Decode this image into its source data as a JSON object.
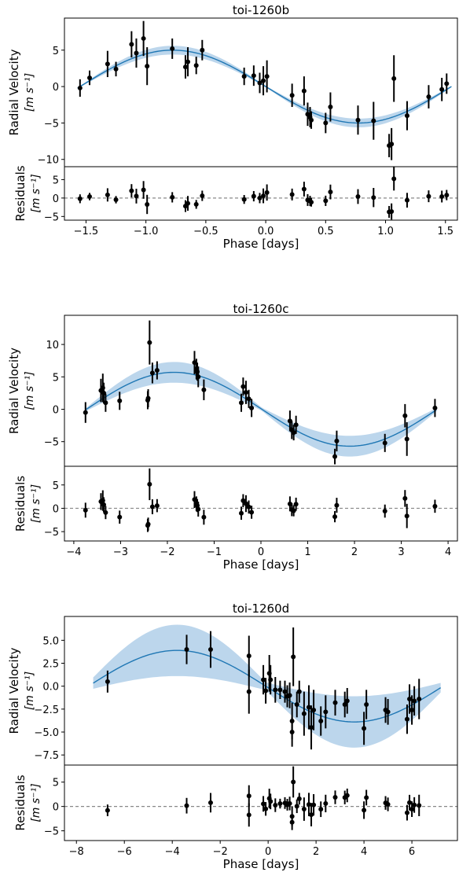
{
  "colors": {
    "model": "#1f77b4",
    "band": "#a6c8e6",
    "point": "#000000",
    "zero_line": "#888888"
  },
  "chart_data": [
    {
      "type": "scatter",
      "title": "toi-1260b",
      "ylabel": [
        "Radial Velocity",
        "[m s⁻¹]"
      ],
      "res_ylabel": [
        "Residuals",
        "[m s⁻¹]"
      ],
      "xlabel": "Phase [days]",
      "xlim": [
        -1.68,
        1.6
      ],
      "ylim": [
        -11.0,
        9.4
      ],
      "res_ylim": [
        -6.0,
        8.5
      ],
      "xticks": [
        -1.5,
        -1.0,
        -0.5,
        0.0,
        0.5,
        1.0,
        1.5
      ],
      "xtick_labels": [
        "−1.5",
        "−1.0",
        "−0.5",
        "0.0",
        "0.5",
        "1.0",
        "1.5"
      ],
      "yticks": [
        -10,
        -5,
        0,
        5
      ],
      "ytick_labels": [
        "−10",
        "−5",
        "0",
        "5"
      ],
      "res_yticks": [
        -5,
        0,
        5
      ],
      "res_ytick_labels": [
        "−5",
        "0",
        "5"
      ],
      "model": {
        "amplitude": 5.0,
        "band": 0.6,
        "period": 3.1,
        "phase_peak": -0.775,
        "xrange": [
          -1.57,
          1.55
        ]
      },
      "points": [
        [
          -1.55,
          -0.2,
          1.2
        ],
        [
          -1.47,
          1.2,
          1.0
        ],
        [
          -1.32,
          3.1,
          1.8
        ],
        [
          -1.25,
          2.4,
          1.0
        ],
        [
          -1.12,
          5.8,
          1.8
        ],
        [
          -1.08,
          4.6,
          2.0
        ],
        [
          -1.02,
          6.6,
          2.4
        ],
        [
          -0.99,
          2.8,
          2.6
        ],
        [
          -0.78,
          5.2,
          1.4
        ],
        [
          -0.67,
          2.7,
          1.6
        ],
        [
          -0.65,
          3.4,
          2.0
        ],
        [
          -0.58,
          2.9,
          1.2
        ],
        [
          -0.53,
          5.0,
          1.4
        ],
        [
          -0.18,
          1.4,
          1.2
        ],
        [
          -0.1,
          1.5,
          1.4
        ],
        [
          -0.05,
          0.5,
          1.4
        ],
        [
          -0.02,
          0.8,
          2.0
        ],
        [
          0.01,
          1.4,
          2.2
        ],
        [
          0.22,
          -1.2,
          1.6
        ],
        [
          0.32,
          -0.6,
          2.0
        ],
        [
          0.35,
          -3.8,
          1.6
        ],
        [
          0.37,
          -4.2,
          1.4
        ],
        [
          0.38,
          -4.6,
          1.2
        ],
        [
          0.5,
          -5.0,
          1.4
        ],
        [
          0.54,
          -2.8,
          2.0
        ],
        [
          0.77,
          -4.6,
          2.0
        ],
        [
          0.9,
          -4.7,
          2.6
        ],
        [
          1.03,
          -8.1,
          1.6
        ],
        [
          1.05,
          -7.9,
          2.2
        ],
        [
          1.07,
          1.1,
          3.2
        ],
        [
          1.18,
          -4.0,
          2.0
        ],
        [
          1.36,
          -1.4,
          1.6
        ],
        [
          1.47,
          -0.4,
          1.6
        ],
        [
          1.51,
          0.4,
          1.4
        ]
      ]
    },
    {
      "type": "scatter",
      "title": "toi-1260c",
      "ylabel": [
        "Radial Velocity",
        "[m s⁻¹]"
      ],
      "res_ylabel": [
        "Residuals",
        "[m s⁻¹]"
      ],
      "xlabel": "Phase [days]",
      "xlim": [
        -4.2,
        4.2
      ],
      "ylim": [
        -8.8,
        14.5
      ],
      "res_ylim": [
        -7.0,
        9.0
      ],
      "xticks": [
        -4,
        -3,
        -2,
        -1,
        0,
        1,
        2,
        3,
        4
      ],
      "xtick_labels": [
        "−4",
        "−3",
        "−2",
        "−1",
        "0",
        "1",
        "2",
        "3",
        "4"
      ],
      "yticks": [
        -5,
        0,
        5,
        10
      ],
      "ytick_labels": [
        "−5",
        "0",
        "5",
        "10"
      ],
      "res_yticks": [
        -5,
        0,
        5
      ],
      "res_ytick_labels": [
        "−5",
        "0",
        "5"
      ],
      "model": {
        "amplitude": 5.7,
        "band": 1.6,
        "period": 7.5,
        "phase_peak": -1.855,
        "xrange": [
          -3.75,
          3.75
        ]
      },
      "points": [
        [
          -3.75,
          -0.5,
          1.6
        ],
        [
          -3.42,
          2.9,
          1.8
        ],
        [
          -3.38,
          3.3,
          2.2
        ],
        [
          -3.36,
          2.5,
          1.6
        ],
        [
          -3.32,
          1.0,
          1.4
        ],
        [
          -3.02,
          1.3,
          1.4
        ],
        [
          -2.42,
          1.4,
          1.4
        ],
        [
          -2.41,
          1.7,
          1.4
        ],
        [
          -2.38,
          10.3,
          3.4
        ],
        [
          -2.32,
          5.6,
          1.6
        ],
        [
          -2.22,
          6.0,
          1.4
        ],
        [
          -1.42,
          7.2,
          1.8
        ],
        [
          -1.38,
          6.2,
          1.6
        ],
        [
          -1.36,
          5.8,
          1.4
        ],
        [
          -1.34,
          5.0,
          1.6
        ],
        [
          -1.22,
          3.0,
          1.6
        ],
        [
          -0.42,
          1.0,
          1.4
        ],
        [
          -0.38,
          3.5,
          1.4
        ],
        [
          -0.32,
          2.6,
          1.8
        ],
        [
          -0.26,
          1.6,
          1.4
        ],
        [
          -0.2,
          0.2,
          1.4
        ],
        [
          0.62,
          -1.8,
          1.6
        ],
        [
          0.66,
          -3.2,
          1.4
        ],
        [
          0.7,
          -3.6,
          1.2
        ],
        [
          0.75,
          -2.4,
          1.4
        ],
        [
          1.58,
          -7.3,
          1.2
        ],
        [
          1.62,
          -4.9,
          1.6
        ],
        [
          2.65,
          -5.2,
          1.4
        ],
        [
          3.08,
          -1.0,
          1.8
        ],
        [
          3.12,
          -4.6,
          2.6
        ],
        [
          3.72,
          0.2,
          1.4
        ]
      ]
    },
    {
      "type": "scatter",
      "title": "toi-1260d",
      "ylabel": [
        "Radial Velocity",
        "[m s⁻¹]"
      ],
      "res_ylabel": [
        "Residuals",
        "[m s⁻¹]"
      ],
      "xlabel": "Phase [days]",
      "xlim": [
        -8.5,
        7.9
      ],
      "ylim": [
        -8.6,
        7.6
      ],
      "res_ylim": [
        -7.0,
        8.5
      ],
      "xticks": [
        -8,
        -6,
        -4,
        -2,
        0,
        2,
        4,
        6
      ],
      "xtick_labels": [
        "−8",
        "−6",
        "−4",
        "−2",
        "0",
        "2",
        "4",
        "6"
      ],
      "yticks": [
        -7.5,
        -5.0,
        -2.5,
        0.0,
        2.5,
        5.0
      ],
      "ytick_labels": [
        "−7.5",
        "−5.0",
        "−2.5",
        "0.0",
        "2.5",
        "5.0"
      ],
      "res_yticks": [
        -5,
        0,
        5
      ],
      "res_ytick_labels": [
        "−5",
        "0",
        "5"
      ],
      "model": {
        "amplitude": 3.9,
        "band": 2.8,
        "period": 14.8,
        "phase_peak": -3.8,
        "xrange": [
          -7.3,
          7.2
        ]
      },
      "points": [
        [
          -6.7,
          0.5,
          1.2
        ],
        [
          -3.4,
          4.0,
          1.6
        ],
        [
          -2.4,
          4.0,
          2.0
        ],
        [
          -0.8,
          3.3,
          2.2
        ],
        [
          -0.8,
          -0.6,
          2.4
        ],
        [
          -0.2,
          0.7,
          1.6
        ],
        [
          -0.1,
          -0.5,
          1.4
        ],
        [
          0.05,
          1.4,
          2.0
        ],
        [
          0.1,
          0.7,
          1.6
        ],
        [
          0.3,
          -0.4,
          1.4
        ],
        [
          0.5,
          -0.4,
          1.0
        ],
        [
          0.7,
          -0.6,
          1.2
        ],
        [
          0.8,
          -1.1,
          1.2
        ],
        [
          0.9,
          -1.0,
          1.4
        ],
        [
          1.0,
          -3.8,
          2.0
        ],
        [
          1.0,
          -5.0,
          1.6
        ],
        [
          1.05,
          3.2,
          3.2
        ],
        [
          1.2,
          -2.0,
          1.4
        ],
        [
          1.3,
          -0.6,
          1.2
        ],
        [
          1.5,
          -3.0,
          2.4
        ],
        [
          1.7,
          -2.3,
          2.4
        ],
        [
          1.8,
          -4.5,
          2.4
        ],
        [
          1.9,
          -2.6,
          2.2
        ],
        [
          2.2,
          -3.8,
          1.6
        ],
        [
          2.4,
          -2.8,
          1.8
        ],
        [
          2.8,
          -1.8,
          1.4
        ],
        [
          3.2,
          -2.0,
          1.4
        ],
        [
          3.3,
          -1.6,
          1.4
        ],
        [
          4.0,
          -4.6,
          1.8
        ],
        [
          4.1,
          -2.0,
          1.6
        ],
        [
          4.9,
          -2.6,
          1.4
        ],
        [
          5.0,
          -2.8,
          1.4
        ],
        [
          5.8,
          -3.6,
          1.6
        ],
        [
          5.9,
          -1.4,
          1.6
        ],
        [
          6.0,
          -2.6,
          1.6
        ],
        [
          6.1,
          -1.6,
          1.6
        ],
        [
          6.3,
          -1.4,
          2.2
        ]
      ]
    }
  ]
}
